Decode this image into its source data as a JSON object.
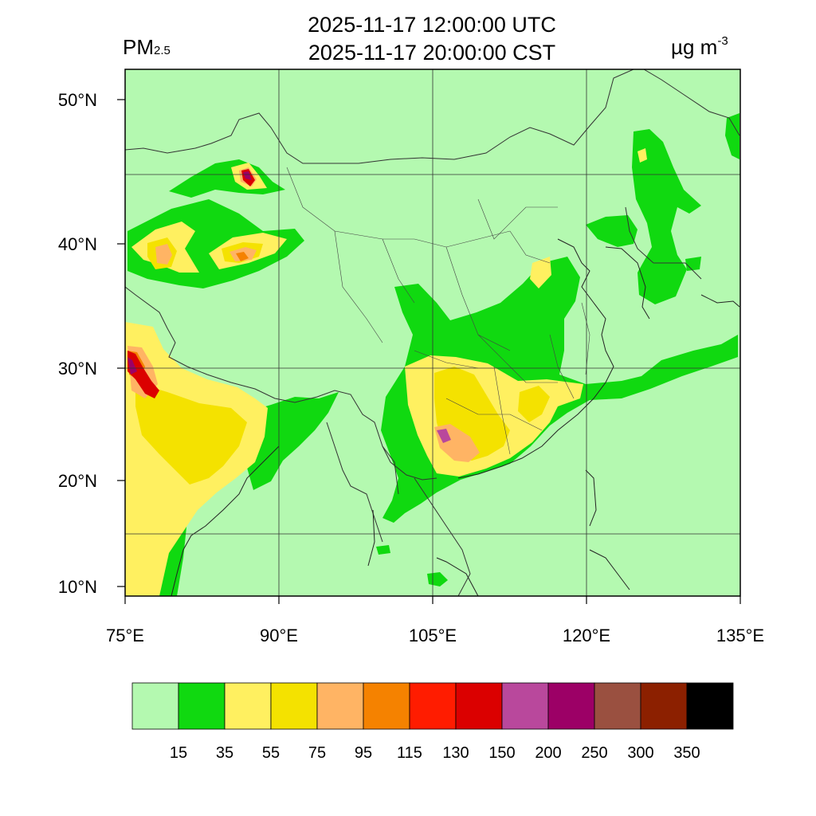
{
  "header": {
    "variable": "PM",
    "variable_subscript": "2.5",
    "time_utc": "2025-11-17 12:00:00 UTC",
    "time_cst": "2025-11-17 20:00:00 CST",
    "unit_main": "µg m",
    "unit_exp": "-3"
  },
  "axes": {
    "lon_ticks": [
      "75°E",
      "90°E",
      "105°E",
      "120°E",
      "135°E"
    ],
    "lat_ticks": [
      "50°N",
      "40°N",
      "30°N",
      "20°N",
      "10°N"
    ],
    "lon_values": [
      75,
      90,
      105,
      120,
      135
    ],
    "lat_values": [
      50,
      40,
      30,
      20,
      10
    ],
    "lon_range": [
      75,
      135
    ],
    "lat_range": [
      9.3,
      52.0
    ],
    "grid": true
  },
  "colorbar": {
    "levels": [
      "15",
      "35",
      "55",
      "75",
      "95",
      "115",
      "130",
      "150",
      "200",
      "250",
      "300",
      "350"
    ],
    "colors": [
      "#b4f9b0",
      "#10d910",
      "#fff060",
      "#f4e200",
      "#ffb464",
      "#f58200",
      "#ff1c00",
      "#db0000",
      "#b9489c",
      "#9c0066",
      "#9a5040",
      "#8c2000",
      "#000000"
    ]
  },
  "palette": {
    "background_field": "#b4f9b0",
    "border_lines": "#333333"
  }
}
